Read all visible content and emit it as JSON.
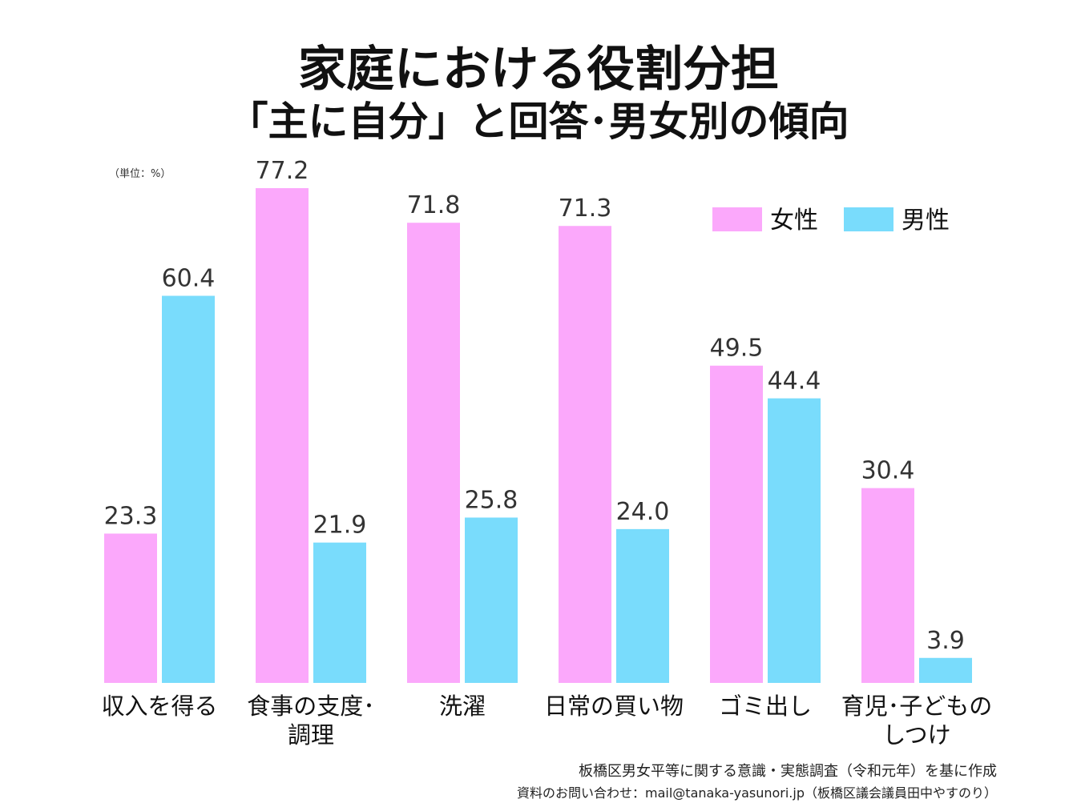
{
  "header": {
    "title_line1": "家庭における役割分担",
    "title_line2": "「主に自分」と回答･男女別の傾向",
    "unit": "（単位：%）"
  },
  "chart_data": {
    "type": "bar",
    "title": "家庭における役割分担「主に自分」と回答･男女別の傾向",
    "unit_label": "（単位：%）",
    "categories": [
      [
        "収入を得る"
      ],
      [
        "食事の支度･",
        "調理"
      ],
      [
        "洗濯"
      ],
      [
        "日常の買い物"
      ],
      [
        "ゴミ出し"
      ],
      [
        "育児･子どもの",
        "しつけ"
      ]
    ],
    "series": [
      {
        "name": "女性",
        "color": "#fba8fb",
        "values": [
          23.3,
          77.2,
          71.8,
          71.3,
          49.5,
          30.4
        ]
      },
      {
        "name": "男性",
        "color": "#79dcfc",
        "values": [
          60.4,
          21.9,
          25.8,
          24.0,
          44.4,
          3.9
        ]
      }
    ],
    "ylim": [
      0,
      77.2
    ],
    "grid": false,
    "legend": "top-right",
    "xlabel": "",
    "ylabel": ""
  },
  "footer": {
    "source_line1": "板橋区男女平等に関する意識・実態調査（令和元年）を基に作成",
    "source_line2": "資料のお問い合わせ：mail@tanaka-yasunori.jp（板橋区議会議員田中やすのり）"
  }
}
